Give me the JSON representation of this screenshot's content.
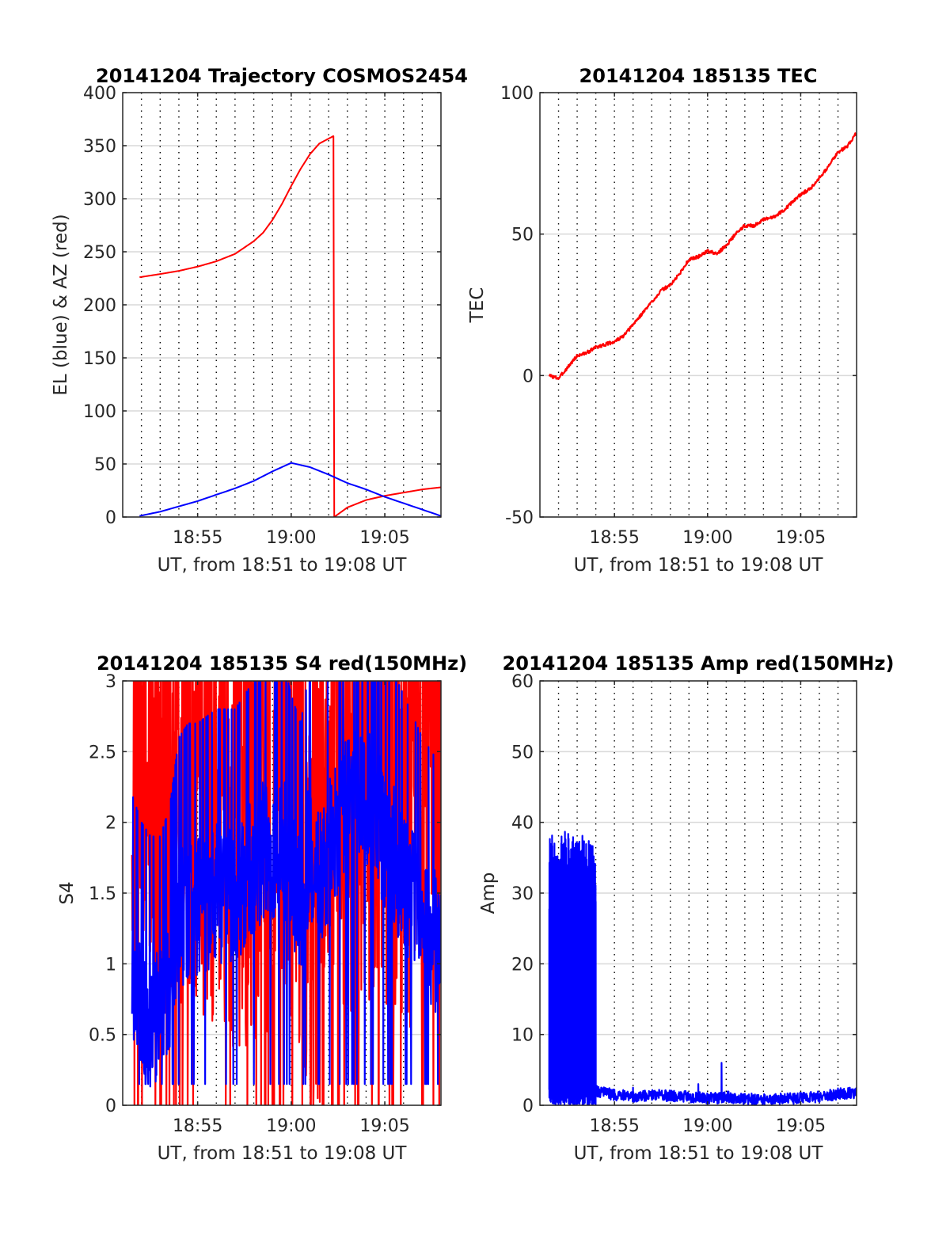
{
  "colors": {
    "red": "#ff0000",
    "blue": "#0000ff",
    "grid": "#d9d9d9",
    "axis": "#262626"
  },
  "chart_data": [
    {
      "id": "traj",
      "type": "line",
      "title": "20141204 Trajectory COSMOS2454",
      "xlabel": "UT, from 18:51 to 19:08 UT",
      "ylabel": "EL (blue) & AZ (red)",
      "xlim": [
        18.85,
        19.1333
      ],
      "ylim": [
        0,
        400
      ],
      "yticks": [
        0,
        50,
        100,
        150,
        200,
        250,
        300,
        350,
        400
      ],
      "xticks": [
        {
          "value": 18.9167,
          "label": "18:55"
        },
        {
          "value": 19.0,
          "label": "19:00"
        },
        {
          "value": 19.0833,
          "label": "19:05"
        }
      ],
      "grid": "dotted vertical each minute, solid horizontal at y ticks",
      "series": [
        {
          "color": "red",
          "style": "smooth",
          "x": [
            18.865,
            18.8833,
            18.9,
            18.9167,
            18.9333,
            18.95,
            18.9667,
            18.975,
            18.9833,
            18.9917,
            19.0,
            19.0083,
            19.0167,
            19.025,
            19.0375,
            19.0376,
            19.0383,
            19.05,
            19.0667,
            19.0833,
            19.1,
            19.1167,
            19.1333
          ],
          "y": [
            226,
            229,
            232,
            236,
            241,
            248,
            260,
            268,
            280,
            295,
            312,
            328,
            342,
            352,
            359,
            359,
            0,
            9,
            16,
            20,
            23,
            26,
            28
          ]
        },
        {
          "color": "blue",
          "style": "smooth",
          "x": [
            18.865,
            18.8833,
            18.9,
            18.9167,
            18.9333,
            18.95,
            18.9667,
            18.9833,
            19.0,
            19.0167,
            19.0333,
            19.05,
            19.0667,
            19.0833,
            19.1,
            19.1167,
            19.1333
          ],
          "y": [
            1,
            5,
            10,
            15,
            21,
            27,
            34,
            43,
            51,
            47,
            40,
            32,
            26,
            19,
            13,
            7,
            1
          ]
        }
      ]
    },
    {
      "id": "tec",
      "type": "line",
      "title": "20141204 185135 TEC",
      "xlabel": "UT, from 18:51 to 19:08 UT",
      "ylabel": "TEC",
      "xlim": [
        18.85,
        19.1333
      ],
      "ylim": [
        -50,
        100
      ],
      "yticks": [
        -50,
        0,
        50,
        100
      ],
      "xticks": [
        {
          "value": 18.9167,
          "label": "18:55"
        },
        {
          "value": 19.0,
          "label": "19:00"
        },
        {
          "value": 19.0833,
          "label": "19:05"
        }
      ],
      "grid": "dotted vertical each minute, solid horizontal at y ticks",
      "series": [
        {
          "color": "red",
          "style": "noisy",
          "noise": 0.6,
          "samples": 700,
          "seed": 3,
          "x": [
            18.8583,
            18.8667,
            18.8833,
            18.8917,
            18.9,
            18.9167,
            18.925,
            18.9333,
            18.9417,
            18.95,
            18.9583,
            18.9667,
            18.975,
            18.9833,
            18.9917,
            19.0,
            19.0083,
            19.0167,
            19.025,
            19.0333,
            19.0417,
            19.05,
            19.0583,
            19.0667,
            19.075,
            19.0833,
            19.0917,
            19.1,
            19.1083,
            19.1167,
            19.125,
            19.1333
          ],
          "y": [
            0,
            -1,
            7,
            8,
            10,
            12,
            14,
            18,
            22,
            26,
            30,
            32,
            36,
            41,
            42,
            44,
            43,
            46,
            50,
            53,
            53,
            55,
            56,
            58,
            61,
            64,
            66,
            70,
            74,
            79,
            81,
            86
          ]
        }
      ]
    },
    {
      "id": "s4",
      "type": "line",
      "title": "20141204 185135 S4 red(150MHz)",
      "xlabel": "UT, from 18:51 to 19:08 UT",
      "ylabel": "S4",
      "xlim": [
        18.85,
        19.1333
      ],
      "ylim": [
        0,
        3
      ],
      "yticks": [
        0,
        0.5,
        1,
        1.5,
        2,
        2.5,
        3
      ],
      "ytick_labels": [
        "0",
        "0.5",
        "1",
        "1.5",
        "2",
        "2.5",
        "3"
      ],
      "xticks": [
        {
          "value": 18.9167,
          "label": "18:55"
        },
        {
          "value": 19.0,
          "label": "19:00"
        },
        {
          "value": 19.0833,
          "label": "19:05"
        }
      ],
      "grid": "dotted vertical each minute, solid horizontal at y ticks",
      "series": [
        {
          "color": "red",
          "style": "noisy",
          "noise": 1.6,
          "samples": 900,
          "seed": 11,
          "x": [
            18.8583,
            18.8667,
            18.8833,
            18.9,
            18.9167,
            18.9333,
            18.95,
            18.9667,
            18.975,
            18.9833,
            18.9917,
            19.0,
            19.0083,
            19.0167,
            19.025,
            19.0333,
            19.05,
            19.0667,
            19.0833,
            19.1,
            19.1167,
            19.1333
          ],
          "y": [
            2.6,
            2.5,
            2.4,
            2.3,
            2.2,
            2.1,
            2.0,
            1.9,
            2.0,
            2.2,
            2.4,
            2.2,
            2.0,
            1.6,
            1.6,
            2.0,
            2.2,
            2.3,
            2.2,
            2.0,
            2.1,
            2.2
          ]
        },
        {
          "color": "blue",
          "style": "noisy",
          "noise": 0.5,
          "samples": 900,
          "seed": 27,
          "x": [
            18.8583,
            18.8667,
            18.875,
            18.8833,
            18.8917,
            18.9,
            18.9083,
            18.9167,
            18.9333,
            18.95,
            18.9667,
            18.975,
            18.9833,
            18.9917,
            19.0,
            19.0083,
            19.0167,
            19.025,
            19.0333,
            19.05,
            19.0667,
            19.0833,
            19.1,
            19.1167,
            19.1333
          ],
          "y": [
            0.9,
            0.7,
            0.6,
            0.6,
            0.8,
            1.3,
            1.4,
            1.4,
            1.5,
            1.5,
            1.7,
            1.8,
            1.8,
            1.9,
            1.6,
            1.4,
            1.8,
            1.6,
            1.8,
            2.2,
            2.2,
            1.9,
            1.6,
            1.3,
            1.1
          ]
        }
      ]
    },
    {
      "id": "amp",
      "type": "line",
      "title": "20141204 185135 Amp red(150MHz)",
      "xlabel": "UT, from 18:51 to 19:08 UT",
      "ylabel": "Amp",
      "xlim": [
        18.85,
        19.1333
      ],
      "ylim": [
        0,
        60
      ],
      "yticks": [
        0,
        10,
        20,
        30,
        40,
        50,
        60
      ],
      "xticks": [
        {
          "value": 18.9167,
          "label": "18:55"
        },
        {
          "value": 19.0,
          "label": "19:00"
        },
        {
          "value": 19.0833,
          "label": "19:05"
        }
      ],
      "grid": "dotted vertical each minute, solid horizontal at y ticks",
      "series": [
        {
          "color": "blue",
          "style": "burst",
          "samples": 1400,
          "seed": 5,
          "burst_x": [
            18.8583,
            18.9
          ],
          "burst_range": [
            0,
            39
          ],
          "x": [
            18.9,
            18.9167,
            18.9333,
            18.95,
            18.9667,
            18.9833,
            19.0,
            19.0083,
            19.0167,
            19.025,
            19.0333,
            19.05,
            19.0667,
            19.0833,
            19.1,
            19.1167,
            19.1333
          ],
          "y": [
            2,
            1.5,
            1.2,
            1.5,
            1.3,
            1.2,
            1.0,
            1.0,
            1.2,
            1.0,
            0.9,
            0.8,
            0.9,
            1.0,
            1.2,
            1.6,
            1.8
          ],
          "spikes": [
            {
              "x": 19.0125,
              "y": 6
            },
            {
              "x": 18.9917,
              "y": 3
            },
            {
              "x": 18.9333,
              "y": 2.5
            }
          ]
        }
      ]
    }
  ]
}
